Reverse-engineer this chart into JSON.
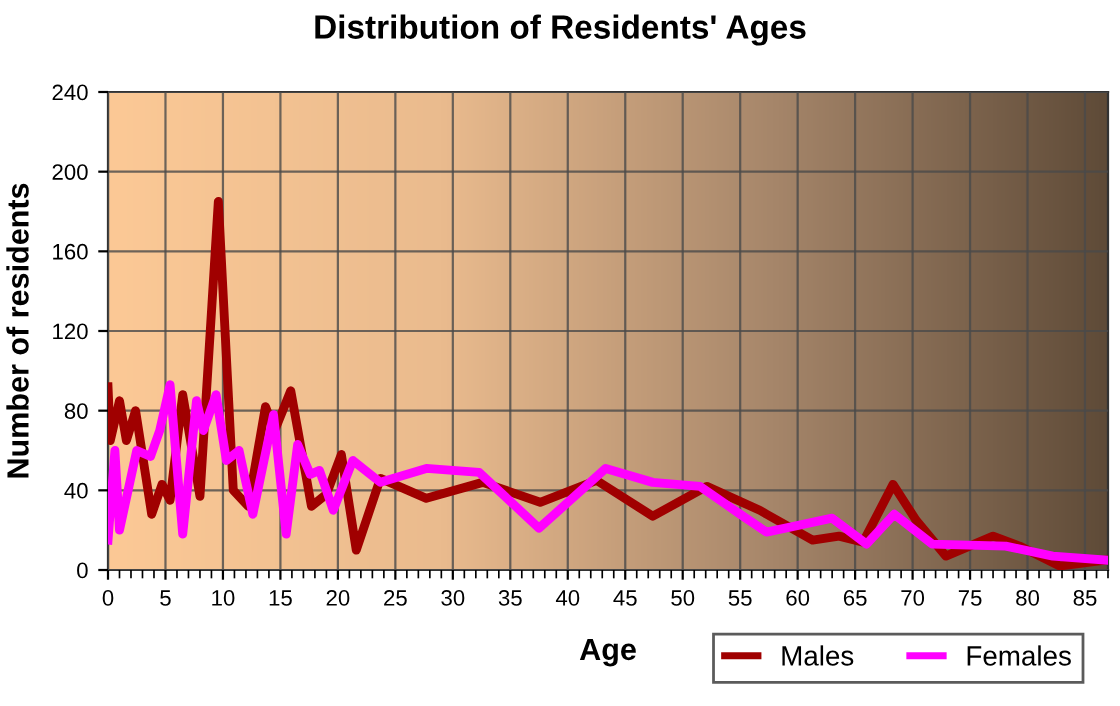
{
  "chart_data": {
    "type": "line",
    "title": "Distribution of Residents' Ages",
    "xlabel": "Age",
    "ylabel": "Number of residents",
    "xlim": [
      0,
      87
    ],
    "xticks": [
      0,
      5,
      10,
      15,
      20,
      25,
      30,
      35,
      40,
      45,
      50,
      55,
      60,
      65,
      70,
      75,
      80,
      85
    ],
    "ylim": [
      0,
      240
    ],
    "yticks": [
      0,
      40,
      80,
      120,
      160,
      200,
      240
    ],
    "grid": true,
    "legend": "bottom right",
    "marker": "none",
    "line_style": "solid",
    "series": [
      {
        "name": "Males",
        "color": "#a00000",
        "x": [
          0,
          0.2,
          1,
          1.6,
          2.4,
          3.8,
          4.7,
          5.4,
          6.5,
          8,
          9.6,
          10.9,
          12.2,
          13.7,
          14.5,
          15.9,
          17.7,
          19,
          20.3,
          21.6,
          23.7,
          27.7,
          32.6,
          37.6,
          42.5,
          47.4,
          52.1,
          56.7,
          57.3,
          61.3,
          63.6,
          65.7,
          68.3,
          70.3,
          72.9,
          77,
          79.3,
          82.8,
          86.8
        ],
        "values": [
          92,
          65,
          85,
          65,
          80,
          28,
          43,
          35,
          88,
          37,
          185,
          40,
          32,
          82,
          70,
          90,
          32,
          38,
          58,
          10,
          46,
          36,
          44,
          34,
          45,
          27,
          42,
          30,
          28,
          15,
          17,
          14,
          43,
          25,
          7,
          17,
          12,
          2,
          5
        ]
      },
      {
        "name": "Females",
        "color": "#ff00ff",
        "x": [
          0,
          0.6,
          1,
          2.5,
          3.7,
          4.5,
          5.4,
          6.5,
          7.7,
          8.3,
          9.4,
          10.3,
          11.4,
          12.6,
          14.4,
          15.5,
          16.5,
          17.6,
          18.4,
          19.6,
          21.3,
          23.7,
          27.7,
          32.3,
          37.5,
          43.3,
          47.4,
          51.5,
          55,
          57.3,
          63,
          66,
          68.4,
          71.7,
          78.1,
          82.2,
          86.8
        ],
        "values": [
          15,
          60,
          20,
          60,
          57,
          70,
          93,
          18,
          85,
          70,
          88,
          55,
          60,
          28,
          78,
          18,
          63,
          48,
          50,
          30,
          55,
          44,
          51,
          49,
          21,
          51,
          44,
          42,
          28,
          19,
          26,
          13,
          28,
          13,
          12,
          7,
          5
        ]
      }
    ]
  }
}
